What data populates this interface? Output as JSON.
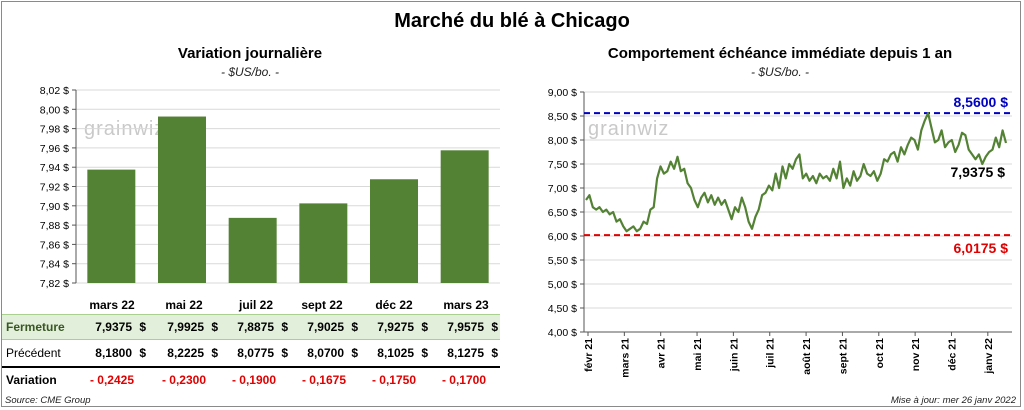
{
  "title": "Marché du blé à Chicago",
  "left_panel": {
    "title": "Variation  journalière",
    "unit": "- $US/bo. -",
    "watermark": "grainwiz",
    "rows": {
      "fermeture_label": "Fermeture",
      "precedent_label": "Précédent",
      "variation_label": "Variation",
      "dollar": "$",
      "fermeture": [
        "7,9375",
        "7,9925",
        "7,8875",
        "7,9025",
        "7,9275",
        "7,9575"
      ],
      "precedent": [
        "8,1800",
        "8,2225",
        "8,0775",
        "8,0700",
        "8,1025",
        "8,1275"
      ],
      "variation": [
        "- 0,2425",
        "- 0,2300",
        "- 0,1900",
        "- 0,1675",
        "- 0,1750",
        "- 0,1700"
      ]
    }
  },
  "right_panel": {
    "title": "Comportement  échéance immédiate depuis 1 an",
    "unit": "- $US/bo. -",
    "watermark": "grainwiz",
    "high_label": "8,5600 $",
    "low_label": "6,0175 $",
    "last_label": "7,9375 $"
  },
  "footer": {
    "source": "Source: CME Group",
    "updated": "Mise à jour: mer 26 janv 2022"
  },
  "colors": {
    "bar": "#548235",
    "line": "#548235",
    "high": "#0000c0",
    "low": "#e00000",
    "grid": "#d9d9d9"
  },
  "chart_data": [
    {
      "type": "bar",
      "categories": [
        "mars 22",
        "mai 22",
        "juil 22",
        "sept 22",
        "déc 22",
        "mars 23"
      ],
      "values": [
        7.9375,
        7.9925,
        7.8875,
        7.9025,
        7.9275,
        7.9575
      ],
      "ylim": [
        7.82,
        8.02
      ],
      "yticks": [
        "7,82 $",
        "7,84 $",
        "7,86 $",
        "7,88 $",
        "7,90 $",
        "7,92 $",
        "7,94 $",
        "7,96 $",
        "7,98 $",
        "8,00 $",
        "8,02 $"
      ],
      "grid": true
    },
    {
      "type": "line",
      "x_labels": [
        "févr 21",
        "mars 21",
        "avr 21",
        "mai 21",
        "juin 21",
        "juil 21",
        "août 21",
        "sept 21",
        "oct 21",
        "nov 21",
        "déc 21",
        "janv 22"
      ],
      "yticks": [
        "4,00 $",
        "4,50 $",
        "5,00 $",
        "5,50 $",
        "6,00 $",
        "6,50 $",
        "7,00 $",
        "7,50 $",
        "8,00 $",
        "8,50 $",
        "9,00 $"
      ],
      "ylim": [
        4.0,
        9.0
      ],
      "high": 8.56,
      "low": 6.0175,
      "last": 7.9375,
      "values": [
        6.75,
        6.85,
        6.6,
        6.55,
        6.6,
        6.5,
        6.55,
        6.45,
        6.5,
        6.3,
        6.35,
        6.2,
        6.1,
        6.15,
        6.2,
        6.1,
        6.15,
        6.3,
        6.25,
        6.55,
        6.6,
        7.2,
        7.45,
        7.3,
        7.35,
        7.55,
        7.4,
        7.65,
        7.35,
        7.4,
        7.1,
        7.0,
        6.75,
        6.6,
        6.8,
        6.9,
        6.7,
        6.85,
        6.65,
        6.8,
        6.65,
        6.75,
        6.55,
        6.35,
        6.6,
        6.5,
        6.8,
        6.6,
        6.3,
        6.15,
        6.4,
        6.55,
        6.85,
        6.9,
        7.05,
        6.95,
        7.3,
        7.0,
        7.45,
        7.2,
        7.5,
        7.4,
        7.6,
        7.7,
        7.2,
        7.3,
        7.15,
        7.25,
        7.1,
        7.3,
        7.2,
        7.25,
        7.15,
        7.4,
        7.2,
        7.55,
        7.0,
        7.2,
        7.05,
        7.35,
        7.15,
        7.25,
        7.5,
        7.3,
        7.25,
        7.35,
        7.15,
        7.3,
        7.6,
        7.55,
        7.7,
        7.75,
        7.55,
        7.85,
        7.7,
        7.9,
        8.05,
        8.0,
        7.8,
        8.2,
        8.4,
        8.56,
        8.25,
        7.95,
        8.0,
        8.2,
        7.85,
        7.95,
        8.0,
        7.75,
        7.9,
        8.15,
        8.1,
        7.8,
        7.7,
        7.6,
        7.7,
        7.5,
        7.65,
        7.75,
        7.8,
        8.05,
        7.85,
        8.2,
        7.9375
      ]
    }
  ]
}
